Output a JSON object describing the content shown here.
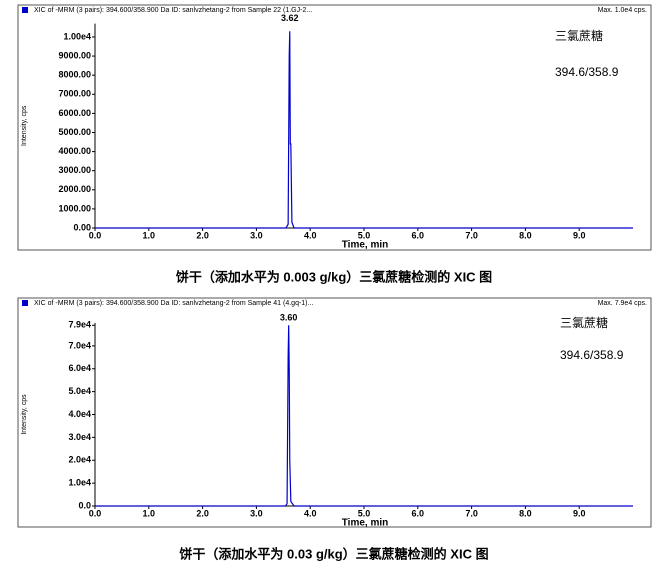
{
  "chart_data": [
    {
      "type": "line",
      "header": "XIC of -MRM (3 pairs): 394.600/358.900 Da ID: sanlvzhetang-2 from Sample 22 (1.GJ-2...",
      "max_label": "Max. 1.0e4 cps.",
      "xlabel": "Time, min",
      "ylabel": "Intensity, cps",
      "annotations": [
        "三氯蔗糖",
        "394.6/358.9"
      ],
      "peak_label": {
        "value": 3.62,
        "label": "3.62"
      },
      "caption": "饼干（添加水平为 0.003 g/kg）三氯蔗糖检测的 XIC 图",
      "color": "#0000cc",
      "x": [
        0,
        3.55,
        3.59,
        3.61,
        3.62,
        3.63,
        3.64,
        3.66,
        3.7,
        10
      ],
      "values": [
        0,
        0,
        200,
        9000,
        10300,
        4400,
        4400,
        300,
        0,
        0
      ],
      "xlim": [
        0,
        10
      ],
      "ylim": [
        0,
        10700
      ],
      "xticks": [
        {
          "value": 0,
          "label": "0.0"
        },
        {
          "value": 1,
          "label": "1.0"
        },
        {
          "value": 2,
          "label": "2.0"
        },
        {
          "value": 3,
          "label": "3.0"
        },
        {
          "value": 4,
          "label": "4.0"
        },
        {
          "value": 5,
          "label": "5.0"
        },
        {
          "value": 6,
          "label": "6.0"
        },
        {
          "value": 7,
          "label": "7.0"
        },
        {
          "value": 8,
          "label": "8.0"
        },
        {
          "value": 9,
          "label": "9.0"
        }
      ],
      "yticks": [
        {
          "value": 0,
          "label": "0.00"
        },
        {
          "value": 1000,
          "label": "1000.00"
        },
        {
          "value": 2000,
          "label": "2000.00"
        },
        {
          "value": 3000,
          "label": "3000.00"
        },
        {
          "value": 4000,
          "label": "4000.00"
        },
        {
          "value": 5000,
          "label": "5000.00"
        },
        {
          "value": 6000,
          "label": "6000.00"
        },
        {
          "value": 7000,
          "label": "7000.00"
        },
        {
          "value": 8000,
          "label": "8000.00"
        },
        {
          "value": 9000,
          "label": "9000.00"
        },
        {
          "value": 10000,
          "label": "1.00e4"
        }
      ]
    },
    {
      "type": "line",
      "header": "XIC of -MRM (3 pairs): 394.600/358.900 Da ID: sanlvzhetang-2 from Sample 41 (4.gq-1)...",
      "max_label": "Max. 7.9e4 cps.",
      "xlabel": "Time, min",
      "ylabel": "Intensity, cps",
      "annotations": [
        "三氯蔗糖",
        "394.6/358.9"
      ],
      "peak_label": {
        "value": 3.6,
        "label": "3.60"
      },
      "caption": "饼干（添加水平为 0.03 g/kg）三氯蔗糖检测的 XIC 图",
      "color": "#0000cc",
      "x": [
        0,
        3.54,
        3.57,
        3.59,
        3.6,
        3.61,
        3.62,
        3.64,
        3.7,
        10
      ],
      "values": [
        0,
        0,
        1000,
        65000,
        79000,
        60000,
        20000,
        2000,
        0,
        0
      ],
      "xlim": [
        0,
        10
      ],
      "ylim": [
        0,
        80000
      ],
      "xticks": [
        {
          "value": 0,
          "label": "0.0"
        },
        {
          "value": 1,
          "label": "1.0"
        },
        {
          "value": 2,
          "label": "2.0"
        },
        {
          "value": 3,
          "label": "3.0"
        },
        {
          "value": 4,
          "label": "4.0"
        },
        {
          "value": 5,
          "label": "5.0"
        },
        {
          "value": 6,
          "label": "6.0"
        },
        {
          "value": 7,
          "label": "7.0"
        },
        {
          "value": 8,
          "label": "8.0"
        },
        {
          "value": 9,
          "label": "9.0"
        }
      ],
      "yticks": [
        {
          "value": 0,
          "label": "0.0"
        },
        {
          "value": 10000,
          "label": "1.0e4"
        },
        {
          "value": 20000,
          "label": "2.0e4"
        },
        {
          "value": 30000,
          "label": "3.0e4"
        },
        {
          "value": 40000,
          "label": "4.0e4"
        },
        {
          "value": 50000,
          "label": "5.0e4"
        },
        {
          "value": 60000,
          "label": "6.0e4"
        },
        {
          "value": 70000,
          "label": "7.0e4"
        },
        {
          "value": 79000,
          "label": "7.9e4"
        }
      ]
    }
  ]
}
